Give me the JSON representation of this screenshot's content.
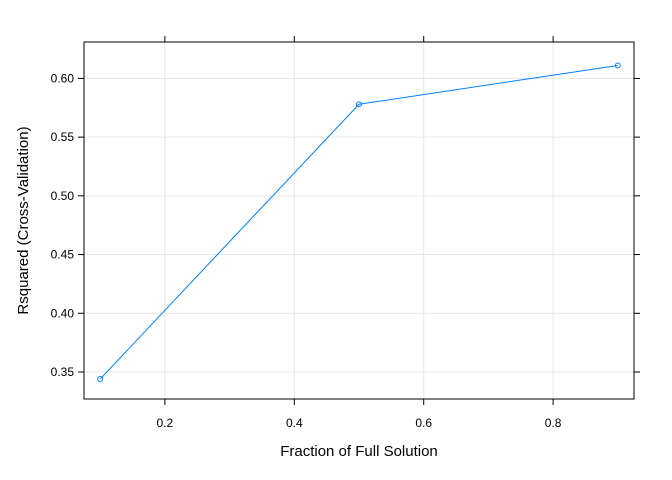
{
  "chart_data": {
    "type": "line",
    "title": "",
    "xlabel": "Fraction of Full Solution",
    "ylabel": "Rsquared (Cross-Validation)",
    "xlim": [
      0.075,
      0.925
    ],
    "ylim": [
      0.327,
      0.631
    ],
    "x_ticks": [
      0.2,
      0.4,
      0.6,
      0.8
    ],
    "y_ticks": [
      0.35,
      0.4,
      0.45,
      0.5,
      0.55,
      0.6
    ],
    "x_tick_labels": [
      "0.2",
      "0.4",
      "0.6",
      "0.8"
    ],
    "y_tick_labels": [
      "0.35",
      "0.40",
      "0.45",
      "0.50",
      "0.55",
      "0.60"
    ],
    "grid": true,
    "legend": "none",
    "series": [
      {
        "x": [
          0.1,
          0.5,
          0.9
        ],
        "y": [
          0.344,
          0.578,
          0.611
        ],
        "color": "#0080ff",
        "marker": "circle"
      }
    ],
    "colors": {
      "grid": "#e6e6e6",
      "frame": "#000000",
      "line": "#0080ff"
    }
  }
}
